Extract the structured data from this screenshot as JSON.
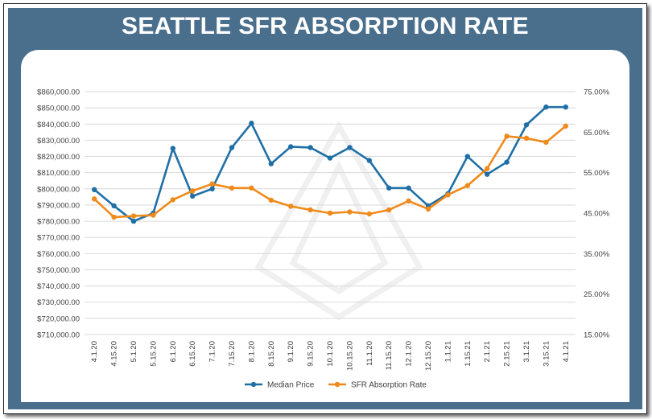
{
  "header": {
    "title": "SEATTLE SFR ABSORPTION RATE"
  },
  "colors": {
    "banner": "#4a6f8c",
    "median_price": "#1f6fa6",
    "absorption_rate": "#ef8a1b",
    "grid": "#d9d9d9"
  },
  "chart_data": {
    "type": "line",
    "title": "SEATTLE SFR ABSORPTION RATE",
    "categories": [
      "4.1.20",
      "4.15.20",
      "5.1.20",
      "5.15.20",
      "6.1.20",
      "6.15.20",
      "7.1.20",
      "7.15.20",
      "8.1.20",
      "8.15.20",
      "9.1.20",
      "9.15.20",
      "10.1.20",
      "10.15.20",
      "11.1.20",
      "11.15.20",
      "12.1.20",
      "12.15.20",
      "1.1.21",
      "1.15.21",
      "2.1.21",
      "2.15.21",
      "3.1.21",
      "3.15.21",
      "4.1.21"
    ],
    "y_left": {
      "ylim": [
        710000,
        860000
      ],
      "ticks": [
        "$710,000.00",
        "$720,000.00",
        "$730,000.00",
        "$740,000.00",
        "$750,000.00",
        "$760,000.00",
        "$770,000.00",
        "$780,000.00",
        "$790,000.00",
        "$800,000.00",
        "$810,000.00",
        "$820,000.00",
        "$830,000.00",
        "$840,000.00",
        "$850,000.00",
        "$860,000.00"
      ]
    },
    "y_right": {
      "ylim": [
        15,
        75
      ],
      "ticks": [
        "15.00%",
        "25.00%",
        "35.00%",
        "45.00%",
        "55.00%",
        "65.00%",
        "75.00%"
      ]
    },
    "grid": true,
    "legend_position": "bottom",
    "series": [
      {
        "name": "Median Price",
        "axis": "left",
        "values": [
          799500,
          789500,
          780000,
          785000,
          825000,
          795500,
          800000,
          825500,
          840500,
          815500,
          826000,
          825500,
          819000,
          825500,
          817500,
          800500,
          800500,
          789500,
          797000,
          820000,
          809000,
          816500,
          839500,
          850500,
          850500
        ]
      },
      {
        "name": "SFR Absorption Rate",
        "axis": "right",
        "values": [
          48.5,
          44.0,
          44.3,
          44.5,
          48.3,
          50.5,
          52.2,
          51.2,
          51.2,
          48.2,
          46.7,
          45.8,
          45.0,
          45.3,
          44.8,
          45.8,
          48.0,
          46.0,
          49.5,
          51.8,
          56.0,
          64.0,
          63.5,
          62.5,
          66.5
        ]
      }
    ]
  }
}
